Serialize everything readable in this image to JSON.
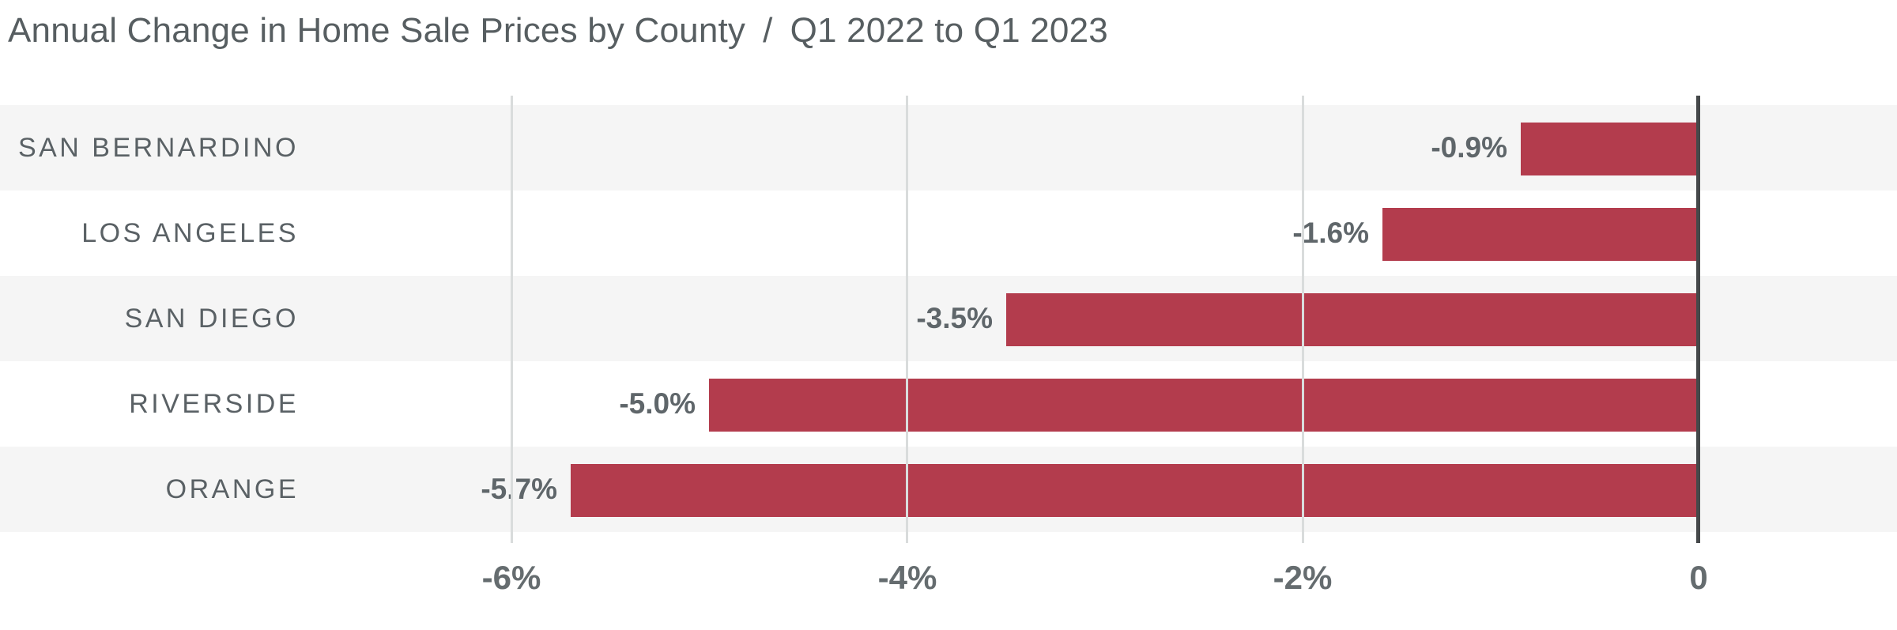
{
  "title": {
    "main": "Annual Change in Home Sale Prices by County",
    "separator": "/",
    "period": "Q1 2022 to Q1 2023"
  },
  "chart_data": {
    "type": "bar",
    "orientation": "horizontal",
    "title": "Annual Change in Home Sale Prices by County / Q1 2022 to Q1 2023",
    "categories": [
      "SAN BERNARDINO",
      "LOS ANGELES",
      "SAN DIEGO",
      "RIVERSIDE",
      "ORANGE"
    ],
    "values": [
      -0.9,
      -1.6,
      -3.5,
      -5.0,
      -5.7
    ],
    "value_labels": [
      "-0.9%",
      "-1.6%",
      "-3.5%",
      "-5.0%",
      "-5.7%"
    ],
    "x_ticks": [
      {
        "value": -6,
        "label": "-6%"
      },
      {
        "value": -4,
        "label": "-4%"
      },
      {
        "value": -2,
        "label": "-2%"
      },
      {
        "value": 0,
        "label": "0"
      }
    ],
    "xlim": [
      -6.9,
      0
    ],
    "xlabel": "",
    "ylabel": "",
    "grid": "vertical-on",
    "legend": "none",
    "colors": {
      "bar": "#b33c4d",
      "row_band_alt": "#f5f5f5",
      "row_band": "#ffffff",
      "gridline": "#d9dcdc",
      "zero_axis": "#45484a",
      "title_text": "#575e61",
      "category_text": "#5a6165",
      "value_text": "#5f666a",
      "tick_text": "#656c6f"
    }
  }
}
